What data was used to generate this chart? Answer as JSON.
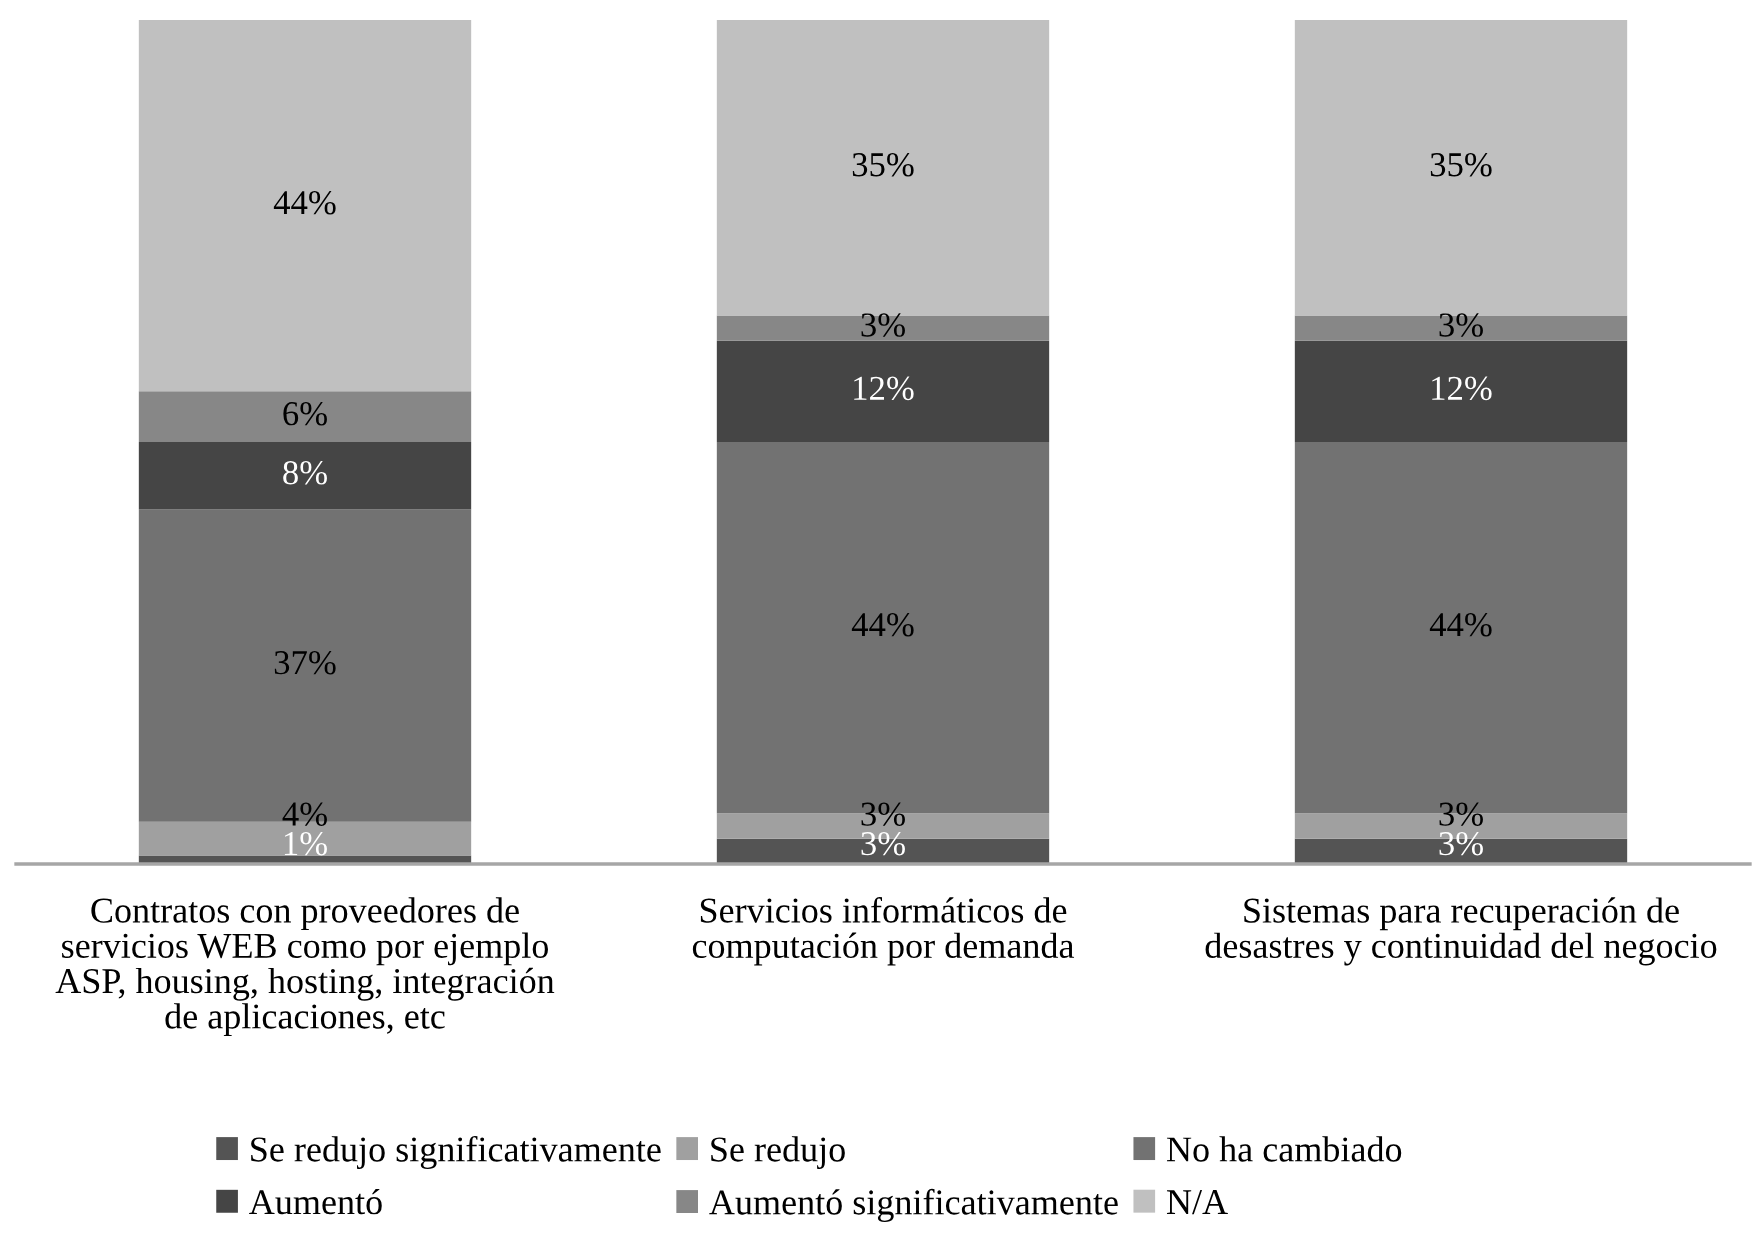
{
  "chart_data": {
    "type": "bar",
    "stacked": true,
    "categories": [
      "Contratos con proveedores de servicios WEB como por ejemplo ASP, housing, hosting, integración de aplicaciones, etc",
      "Servicios informáticos de computación por demanda",
      "Sistemas para recuperación de desastres y continuidad del negocio"
    ],
    "series": [
      {
        "name": "Se redujo significativamente",
        "color": "#545454",
        "values": [
          1,
          3,
          3
        ],
        "value_labels": [
          "1%",
          "3%",
          "3%"
        ]
      },
      {
        "name": "Se redujo",
        "color": "#a0a0a0",
        "values": [
          4,
          3,
          3
        ],
        "value_labels": [
          "4%",
          "3%",
          "3%"
        ]
      },
      {
        "name": "No ha cambiado",
        "color": "#727272",
        "values": [
          37,
          44,
          44
        ],
        "value_labels": [
          "37%",
          "44%",
          "44%"
        ]
      },
      {
        "name": "Aumentó",
        "color": "#454545",
        "values": [
          8,
          12,
          12
        ],
        "value_labels": [
          "8%",
          "12%",
          "12%"
        ]
      },
      {
        "name": "Aumentó significativamente",
        "color": "#878787",
        "values": [
          6,
          3,
          3
        ],
        "value_labels": [
          "6%",
          "3%",
          "3%"
        ]
      },
      {
        "name": "N/A",
        "color": "#c0c0c0",
        "values": [
          44,
          35,
          35
        ],
        "value_labels": [
          "44%",
          "35%",
          "35%"
        ]
      }
    ],
    "legend": "bottom",
    "tick_labels": "x"
  }
}
